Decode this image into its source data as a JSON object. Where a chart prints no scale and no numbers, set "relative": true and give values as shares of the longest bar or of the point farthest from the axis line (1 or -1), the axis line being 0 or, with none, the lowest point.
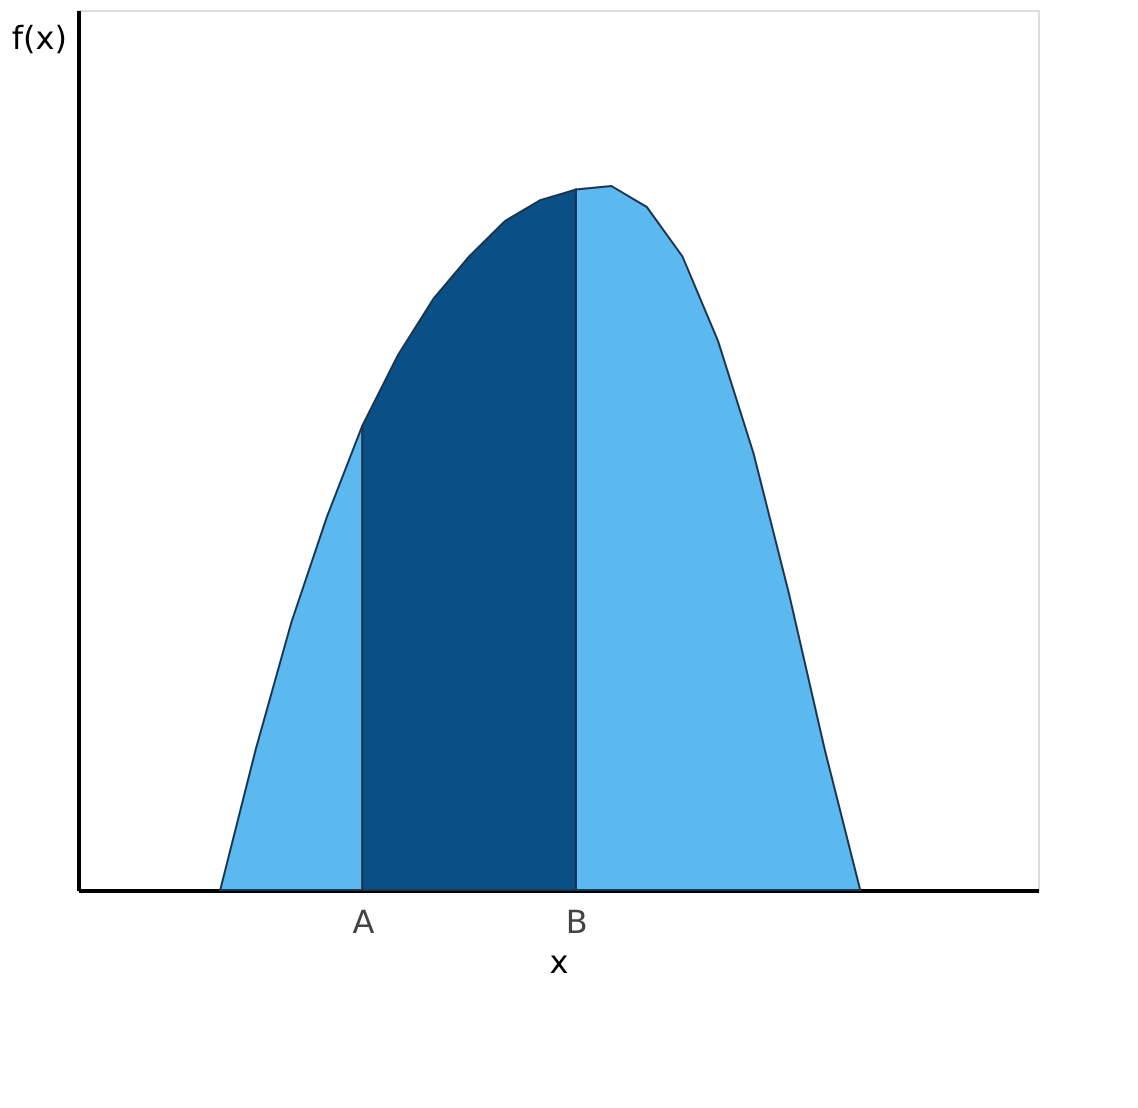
{
  "chart_data": {
    "type": "area",
    "relative": true,
    "xlabel": "x",
    "ylabel": "f(x)",
    "grid": false,
    "categories": [
      null,
      null,
      null,
      null,
      null,
      null,
      null,
      null,
      "A",
      null,
      null,
      null,
      null,
      null,
      "B",
      null,
      null,
      null,
      null,
      null,
      null,
      null,
      null,
      null,
      null,
      null,
      null,
      null
    ],
    "series": [
      {
        "color": "#5cb9f0",
        "values": [
          null,
          null,
          null,
          null,
          0,
          0.2,
          0.38,
          0.53,
          0.66,
          null,
          null,
          null,
          null,
          null,
          null,
          null,
          null,
          null,
          null,
          null,
          null,
          null,
          null,
          null,
          null,
          null,
          null,
          null
        ]
      },
      {
        "color": "#5cb9f0",
        "values": [
          null,
          null,
          null,
          null,
          null,
          null,
          null,
          null,
          null,
          null,
          null,
          null,
          null,
          null,
          0.995,
          1,
          0.97,
          0.9,
          0.78,
          0.62,
          0.42,
          0.2,
          0,
          null,
          null,
          null,
          null,
          null
        ]
      },
      {
        "color": "#0b4f87",
        "values": [
          null,
          null,
          null,
          null,
          null,
          null,
          null,
          null,
          0.66,
          0.76,
          0.84,
          0.9,
          0.95,
          0.98,
          0.995,
          null,
          null,
          null,
          null,
          null,
          null,
          null,
          null,
          null,
          null,
          null,
          null,
          null
        ]
      }
    ]
  }
}
